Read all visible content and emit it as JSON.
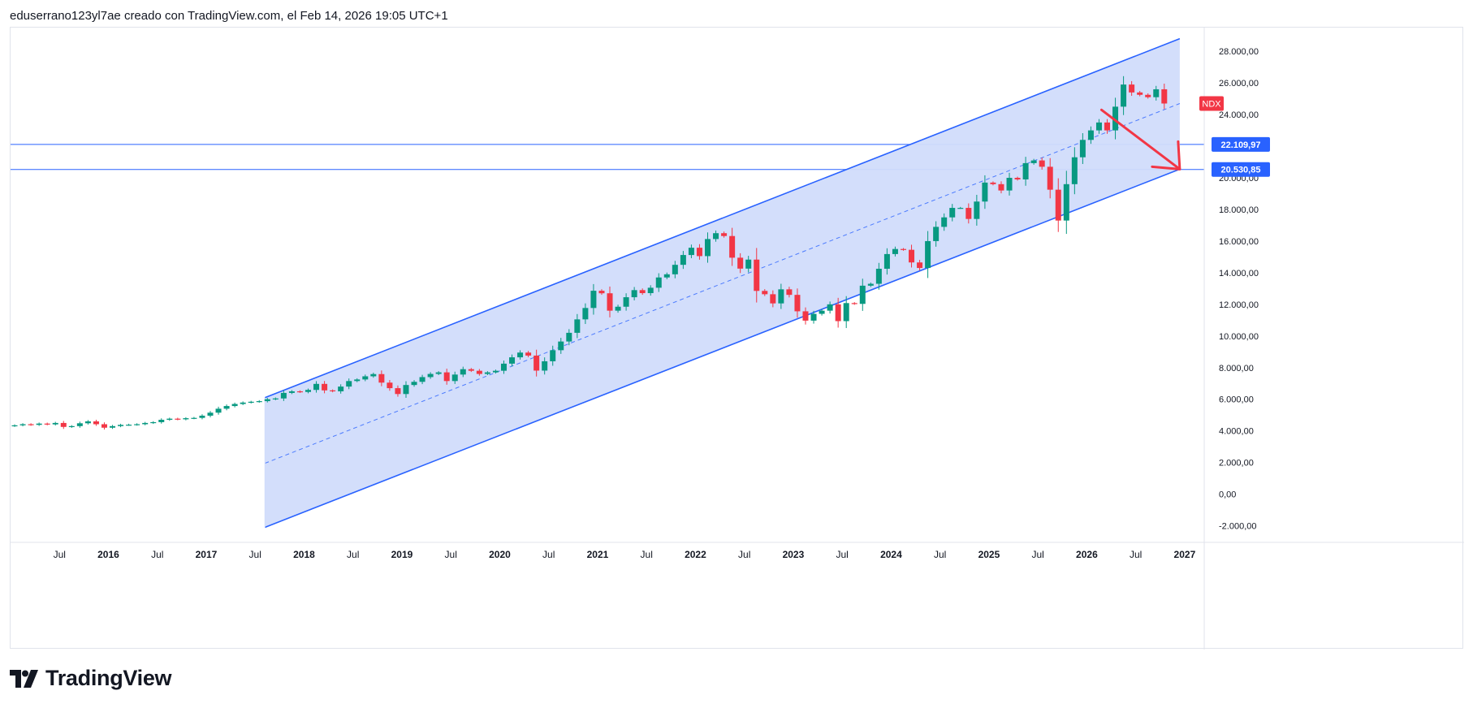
{
  "header": {
    "attribution": "eduserrano123yl7ae creado con TradingView.com, el Feb 14, 2026 19:05 UTC+1"
  },
  "footer": {
    "brand": "TradingView",
    "logo_icon": "tradingview-logo-icon"
  },
  "colors": {
    "up": "#089981",
    "down": "#f23645",
    "channel_line": "#2962ff",
    "channel_fill": "#d1dcfb",
    "hline": "#2962ff",
    "label_bg": "#2962ff",
    "symbol_bg": "#f23645",
    "arrow": "#f23645",
    "axis_text": "#131722"
  },
  "chart_data": {
    "type": "candlestick",
    "symbol": "NDX",
    "timeframe": "monthly",
    "x_range": [
      2015.0,
      2027.2
    ],
    "y_range": [
      -3000,
      29500
    ],
    "x_ticks": [
      {
        "t": 2015.5,
        "label": "Jul",
        "bold": false
      },
      {
        "t": 2016.0,
        "label": "2016",
        "bold": true
      },
      {
        "t": 2016.5,
        "label": "Jul",
        "bold": false
      },
      {
        "t": 2017.0,
        "label": "2017",
        "bold": true
      },
      {
        "t": 2017.5,
        "label": "Jul",
        "bold": false
      },
      {
        "t": 2018.0,
        "label": "2018",
        "bold": true
      },
      {
        "t": 2018.5,
        "label": "Jul",
        "bold": false
      },
      {
        "t": 2019.0,
        "label": "2019",
        "bold": true
      },
      {
        "t": 2019.5,
        "label": "Jul",
        "bold": false
      },
      {
        "t": 2020.0,
        "label": "2020",
        "bold": true
      },
      {
        "t": 2020.5,
        "label": "Jul",
        "bold": false
      },
      {
        "t": 2021.0,
        "label": "2021",
        "bold": true
      },
      {
        "t": 2021.5,
        "label": "Jul",
        "bold": false
      },
      {
        "t": 2022.0,
        "label": "2022",
        "bold": true
      },
      {
        "t": 2022.5,
        "label": "Jul",
        "bold": false
      },
      {
        "t": 2023.0,
        "label": "2023",
        "bold": true
      },
      {
        "t": 2023.5,
        "label": "Jul",
        "bold": false
      },
      {
        "t": 2024.0,
        "label": "2024",
        "bold": true
      },
      {
        "t": 2024.5,
        "label": "Jul",
        "bold": false
      },
      {
        "t": 2025.0,
        "label": "2025",
        "bold": true
      },
      {
        "t": 2025.5,
        "label": "Jul",
        "bold": false
      },
      {
        "t": 2026.0,
        "label": "2026",
        "bold": true
      },
      {
        "t": 2026.5,
        "label": "Jul",
        "bold": false
      },
      {
        "t": 2027.0,
        "label": "2027",
        "bold": true
      }
    ],
    "y_ticks": [
      {
        "v": 28000,
        "label": "28.000,00"
      },
      {
        "v": 26000,
        "label": "26.000,00"
      },
      {
        "v": 24000,
        "label": "24.000,00"
      },
      {
        "v": 22000,
        "label": "22.000,00"
      },
      {
        "v": 20000,
        "label": "20.000,00"
      },
      {
        "v": 18000,
        "label": "18.000,00"
      },
      {
        "v": 16000,
        "label": "16.000,00"
      },
      {
        "v": 14000,
        "label": "14.000,00"
      },
      {
        "v": 12000,
        "label": "12.000,00"
      },
      {
        "v": 10000,
        "label": "10.000,00"
      },
      {
        "v": 8000,
        "label": "8.000,00"
      },
      {
        "v": 6000,
        "label": "6.000,00"
      },
      {
        "v": 4000,
        "label": "4.000,00"
      },
      {
        "v": 2000,
        "label": "2.000,00"
      },
      {
        "v": 0,
        "label": "0,00"
      },
      {
        "v": -2000,
        "label": "-2.000,00"
      }
    ],
    "horizontal_lines": [
      {
        "value": 22109.97,
        "label": "22.109,97"
      },
      {
        "value": 20530.85,
        "label": "20.530,85"
      }
    ],
    "symbol_tag": {
      "value": 24700,
      "label": "NDX"
    },
    "channel": {
      "t_start": 2017.6,
      "t_end": 2026.95,
      "upper": [
        6100,
        28800
      ],
      "middle": [
        1950,
        24700
      ],
      "lower": [
        -2100,
        20550
      ]
    },
    "arrow": {
      "from": [
        2026.15,
        24300
      ],
      "to": [
        2026.95,
        20550
      ]
    },
    "closes": [
      4350,
      4420,
      4380,
      4460,
      4410,
      4500,
      4250,
      4300,
      4480,
      4600,
      4420,
      4200,
      4300,
      4380,
      4390,
      4420,
      4500,
      4550,
      4700,
      4770,
      4730,
      4800,
      4820,
      4960,
      5150,
      5400,
      5570,
      5700,
      5790,
      5840,
      5880,
      6000,
      6050,
      6400,
      6500,
      6460,
      6590,
      6970,
      6560,
      6500,
      6800,
      7150,
      7250,
      7450,
      7590,
      7050,
      6700,
      6330,
      6900,
      7100,
      7400,
      7600,
      7700,
      7150,
      7560,
      7900,
      7800,
      7600,
      7700,
      7800,
      8250,
      8650,
      8950,
      8760,
      7810,
      8400,
      9100,
      9650,
      10200,
      11050,
      11770,
      12860,
      12700,
      11600,
      11850,
      12450,
      12900,
      12710,
      13050,
      13700,
      13900,
      14500,
      15120,
      15580,
      15050,
      16130,
      16500,
      16320,
      14950,
      14260,
      14830,
      12850,
      12640,
      12060,
      12950,
      12600,
      11560,
      10970,
      11400,
      11600,
      12000,
      10940,
      12080,
      12030,
      13180,
      13300,
      14250,
      15180,
      15500,
      15450,
      14650,
      14300,
      16000,
      16900,
      17500,
      18100,
      18100,
      17400,
      18500,
      19700,
      19600,
      19200,
      20000,
      19900,
      20930,
      21100,
      20700,
      19250,
      17300,
      19600,
      21300,
      22400,
      23000,
      23500,
      23000,
      24500,
      25900,
      25400,
      25250,
      25100,
      25600,
      24700
    ]
  }
}
